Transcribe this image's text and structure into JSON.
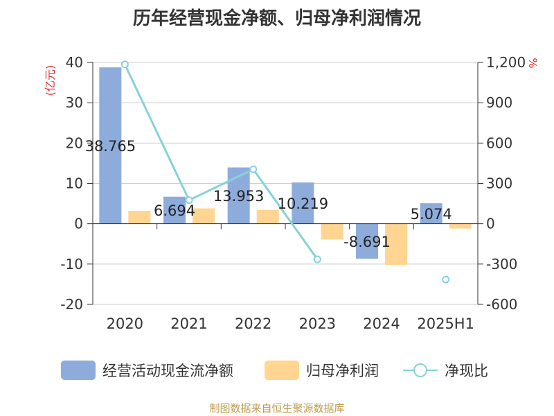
{
  "title": "历年经营现金净额、归母净利润情况",
  "source_note": "制图数据来自恒生聚源数据库",
  "colors": {
    "bar1": "#8eacdb",
    "bar2": "#ffd591",
    "line": "#86d2d8",
    "axis_unit": "#e0302a",
    "text": "#333333",
    "grid": "#cccccc",
    "source": "#c09a4d"
  },
  "legend": {
    "bar1": "经营活动现金流净额",
    "bar2": "归母净利润",
    "line": "净现比"
  },
  "chart_data": {
    "type": "bar",
    "title": "历年经营现金净额、归母净利润情况",
    "categories": [
      "2020",
      "2021",
      "2022",
      "2023",
      "2024",
      "2025H1"
    ],
    "y_left": {
      "label": "(亿元)",
      "ylim": [
        -20,
        40
      ],
      "ticks": [
        -20,
        -10,
        0,
        10,
        20,
        30,
        40
      ]
    },
    "y_right": {
      "label": "%",
      "ylim": [
        -600,
        1200
      ],
      "ticks": [
        -600,
        -300,
        0,
        300,
        600,
        900,
        1200
      ],
      "tick_labels": [
        "-600",
        "-300",
        "0",
        "300",
        "600",
        "900",
        "1,200"
      ]
    },
    "grid": true,
    "legend_position": "bottom",
    "series": [
      {
        "name": "经营活动现金流净额",
        "kind": "bar",
        "axis": "left",
        "values": [
          38.765,
          6.694,
          13.953,
          10.219,
          -8.691,
          5.074
        ],
        "labels": [
          "38.765",
          "6.694",
          "13.953",
          "10.219",
          "-8.691",
          "5.074"
        ]
      },
      {
        "name": "归母净利润",
        "kind": "bar",
        "axis": "left",
        "values": [
          3.2,
          3.8,
          3.4,
          -3.9,
          -10.2,
          -1.2
        ]
      },
      {
        "name": "净现比",
        "kind": "line",
        "axis": "right",
        "values": [
          1185,
          175,
          405,
          -265,
          null,
          -415
        ]
      }
    ]
  }
}
